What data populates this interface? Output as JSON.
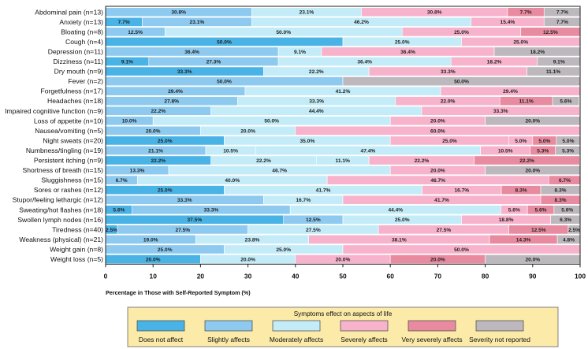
{
  "chart_data": {
    "type": "bar",
    "orientation": "horizontal",
    "stacked": true,
    "xlabel": "Percentage in Those with Self-Reported Symptom (%)",
    "xlim": [
      0,
      100
    ],
    "xticks": [
      0,
      10,
      20,
      30,
      40,
      50,
      60,
      70,
      80,
      90,
      100
    ],
    "legend": {
      "title": "Symptoms effect on aspects of life",
      "placement": "bottom"
    },
    "series": [
      {
        "name": "Does not affect",
        "color": "#4ab3e6"
      },
      {
        "name": "Slightly affects",
        "color": "#8ecaf0"
      },
      {
        "name": "Moderately affects",
        "color": "#c4ecf8"
      },
      {
        "name": "Severely affects",
        "color": "#f8b3cc"
      },
      {
        "name": "Very severely affects",
        "color": "#e88ba0"
      },
      {
        "name": "Severity not reported",
        "color": "#bdb8bd"
      }
    ],
    "categories": [
      "Abdominal pain (n=13)",
      "Anxiety (n=13)",
      "Bloating (n=8)",
      "Cough (n=4)",
      "Depression (n=11)",
      "Dizziness (n=11)",
      "Dry mouth (n=9)",
      "Fever (n=2)",
      "Forgetfulness (n=17)",
      "Headaches (n=18)",
      "Impaired cognitive function (n=9)",
      "Loss of appetite (n=10)",
      "Nausea/vomiting (n=5)",
      "Night sweats (n=20)",
      "Numbness/tingling (n=19)",
      "Persistent itching (n=9)",
      "Shortness of breath (n=15)",
      "Sluggishness (n=15)",
      "Sores or rashes (n=12)",
      "Stupor/feeling lethargic (n=12)",
      "Sweating/hot flashes (n=18)",
      "Swollen lymph nodes (n=16)",
      "Tiredness (n=40)",
      "Weakness (physical) (n=21)",
      "Weight gain (n=8)",
      "Weight loss (n=5)"
    ],
    "values": [
      [
        0,
        30.8,
        23.1,
        30.8,
        7.7,
        7.7
      ],
      [
        7.7,
        23.1,
        46.2,
        15.4,
        0,
        7.7
      ],
      [
        0,
        12.5,
        50.0,
        25.0,
        12.5,
        0
      ],
      [
        50.0,
        0,
        25.0,
        25.0,
        0,
        0
      ],
      [
        0,
        36.4,
        9.1,
        36.4,
        0,
        18.2
      ],
      [
        9.1,
        27.3,
        36.4,
        18.2,
        0,
        9.1
      ],
      [
        33.3,
        0,
        22.2,
        33.3,
        0,
        11.1
      ],
      [
        0,
        50.0,
        0,
        0,
        0,
        50.0
      ],
      [
        0,
        29.4,
        41.2,
        29.4,
        0,
        0
      ],
      [
        0,
        27.8,
        33.3,
        22.0,
        11.1,
        5.6
      ],
      [
        0,
        22.2,
        44.4,
        33.3,
        0,
        0
      ],
      [
        0,
        10.0,
        50.0,
        20.0,
        0,
        20.0
      ],
      [
        0,
        20.0,
        20.0,
        60.0,
        0,
        0
      ],
      [
        25.0,
        0,
        35.0,
        25.0,
        5.0,
        5.0,
        5.0
      ],
      [
        0,
        21.1,
        10.5,
        47.4,
        10.5,
        5.3,
        5.3
      ],
      [
        22.2,
        0,
        22.2,
        11.1,
        22.2,
        22.2
      ],
      [
        0,
        13.3,
        46.7,
        20.0,
        0,
        20.0
      ],
      [
        0,
        6.7,
        40.0,
        46.7,
        6.7,
        0
      ],
      [
        25.0,
        0,
        41.7,
        16.7,
        8.3,
        8.3
      ],
      [
        0,
        33.3,
        16.7,
        41.7,
        8.3,
        0
      ],
      [
        5.6,
        33.3,
        44.4,
        5.6,
        5.6,
        5.6
      ],
      [
        37.5,
        12.5,
        25.0,
        18.8,
        0,
        6.3
      ],
      [
        0,
        2.5,
        27.5,
        27.5,
        27.5,
        12.5,
        2.5
      ],
      [
        0,
        19.0,
        23.8,
        38.1,
        14.3,
        4.8
      ],
      [
        0,
        25.0,
        25.0,
        50.0,
        0,
        0
      ],
      [
        20.0,
        0,
        20.0,
        20.0,
        20.0,
        20.0
      ]
    ],
    "segment_labels": [
      [
        null,
        "30.8%",
        "23.1%",
        "30.8%",
        "7.7%",
        "7.7%"
      ],
      [
        "7.7%",
        "23.1%",
        "46.2%",
        "15.4%",
        null,
        "7.7%"
      ],
      [
        null,
        "12.5%",
        "50.0%",
        "25.0%",
        "12.5%",
        null
      ],
      [
        "50.0%",
        null,
        "25.0%",
        "25.0%",
        null,
        null
      ],
      [
        null,
        "36.4%",
        "9.1%",
        "36.4%",
        null,
        "18.2%"
      ],
      [
        "9.1%",
        "27.3%",
        "36.4%",
        "18.2%",
        null,
        "9.1%"
      ],
      [
        "33.3%",
        null,
        "22.2%",
        "33.3%",
        null,
        "11.1%"
      ],
      [
        null,
        "50.0%",
        null,
        null,
        null,
        "50.0%"
      ],
      [
        null,
        "29.4%",
        "41.2%",
        "29.4%",
        null,
        null
      ],
      [
        null,
        "27.8%",
        "33.3%",
        "22.0%",
        "11.1%",
        "5.6%"
      ],
      [
        null,
        "22.2%",
        "44.4%",
        "33.3%",
        null,
        null
      ],
      [
        null,
        "10.0%",
        "50.0%",
        "20.0%",
        null,
        "20.0%"
      ],
      [
        null,
        "20.0%",
        "20.0%",
        "60.0%",
        null,
        null
      ],
      [
        "25.0%",
        null,
        "35.0%",
        "25.0%",
        "5.0%",
        "5.0%",
        "5.0%"
      ],
      [
        null,
        "21.1%",
        "10.5%",
        "47.4%",
        "10.5%",
        "5.3%",
        "5.3%"
      ],
      [
        "22.2%",
        null,
        "22.2%",
        "11.1%",
        "22.2%",
        "22.2%"
      ],
      [
        null,
        "13.3%",
        "46.7%",
        "20.0%",
        null,
        "20.0%"
      ],
      [
        null,
        "6.7%",
        "40.0%",
        "46.7%",
        "6.7%",
        null
      ],
      [
        "25.0%",
        null,
        "41.7%",
        "16.7%",
        "8.3%",
        "8.3%"
      ],
      [
        null,
        "33.3%",
        "16.7%",
        "41.7%",
        "8.3%",
        null
      ],
      [
        "5.6%",
        "33.3%",
        "44.4%",
        "5.6%",
        "5.6%",
        "5.6%"
      ],
      [
        "37.5%",
        "12.5%",
        "25.0%",
        "18.8%",
        null,
        "6.3%"
      ],
      [
        null,
        "2.5%",
        "27.5%",
        "27.5%",
        "27.5%",
        "12.5%",
        "2.5%"
      ],
      [
        null,
        "19.0%",
        "23.8%",
        "38.1%",
        "14.3%",
        "4.8%"
      ],
      [
        null,
        "25.0%",
        "25.0%",
        "50.0%",
        null,
        null
      ],
      [
        "20.0%",
        null,
        "20.0%",
        "20.0%",
        "20.0%",
        "20.0%"
      ]
    ],
    "segment_series": [
      [
        0,
        1,
        2,
        3,
        4,
        5
      ],
      [
        0,
        1,
        2,
        3,
        4,
        5
      ],
      [
        0,
        1,
        2,
        3,
        4,
        5
      ],
      [
        0,
        1,
        2,
        3,
        4,
        5
      ],
      [
        0,
        1,
        2,
        3,
        4,
        5
      ],
      [
        0,
        1,
        2,
        3,
        4,
        5
      ],
      [
        0,
        1,
        2,
        3,
        4,
        5
      ],
      [
        0,
        1,
        2,
        3,
        4,
        5
      ],
      [
        0,
        1,
        2,
        3,
        4,
        5
      ],
      [
        0,
        1,
        2,
        3,
        4,
        5
      ],
      [
        0,
        1,
        2,
        3,
        4,
        5
      ],
      [
        0,
        1,
        2,
        3,
        4,
        5
      ],
      [
        0,
        1,
        2,
        3,
        4,
        5
      ],
      [
        0,
        1,
        2,
        3,
        3,
        4,
        5
      ],
      [
        0,
        1,
        2,
        2,
        3,
        4,
        5
      ],
      [
        0,
        1,
        2,
        2,
        3,
        4
      ],
      [
        0,
        1,
        2,
        3,
        4,
        5
      ],
      [
        0,
        1,
        2,
        3,
        4,
        5
      ],
      [
        0,
        1,
        2,
        3,
        4,
        5
      ],
      [
        0,
        1,
        2,
        3,
        4,
        5
      ],
      [
        0,
        1,
        2,
        3,
        4,
        5
      ],
      [
        0,
        1,
        2,
        3,
        4,
        5
      ],
      [
        0,
        0,
        1,
        2,
        3,
        4,
        5
      ],
      [
        0,
        1,
        2,
        3,
        4,
        5
      ],
      [
        0,
        1,
        2,
        3,
        4,
        5
      ],
      [
        0,
        1,
        2,
        3,
        4,
        5
      ]
    ]
  }
}
